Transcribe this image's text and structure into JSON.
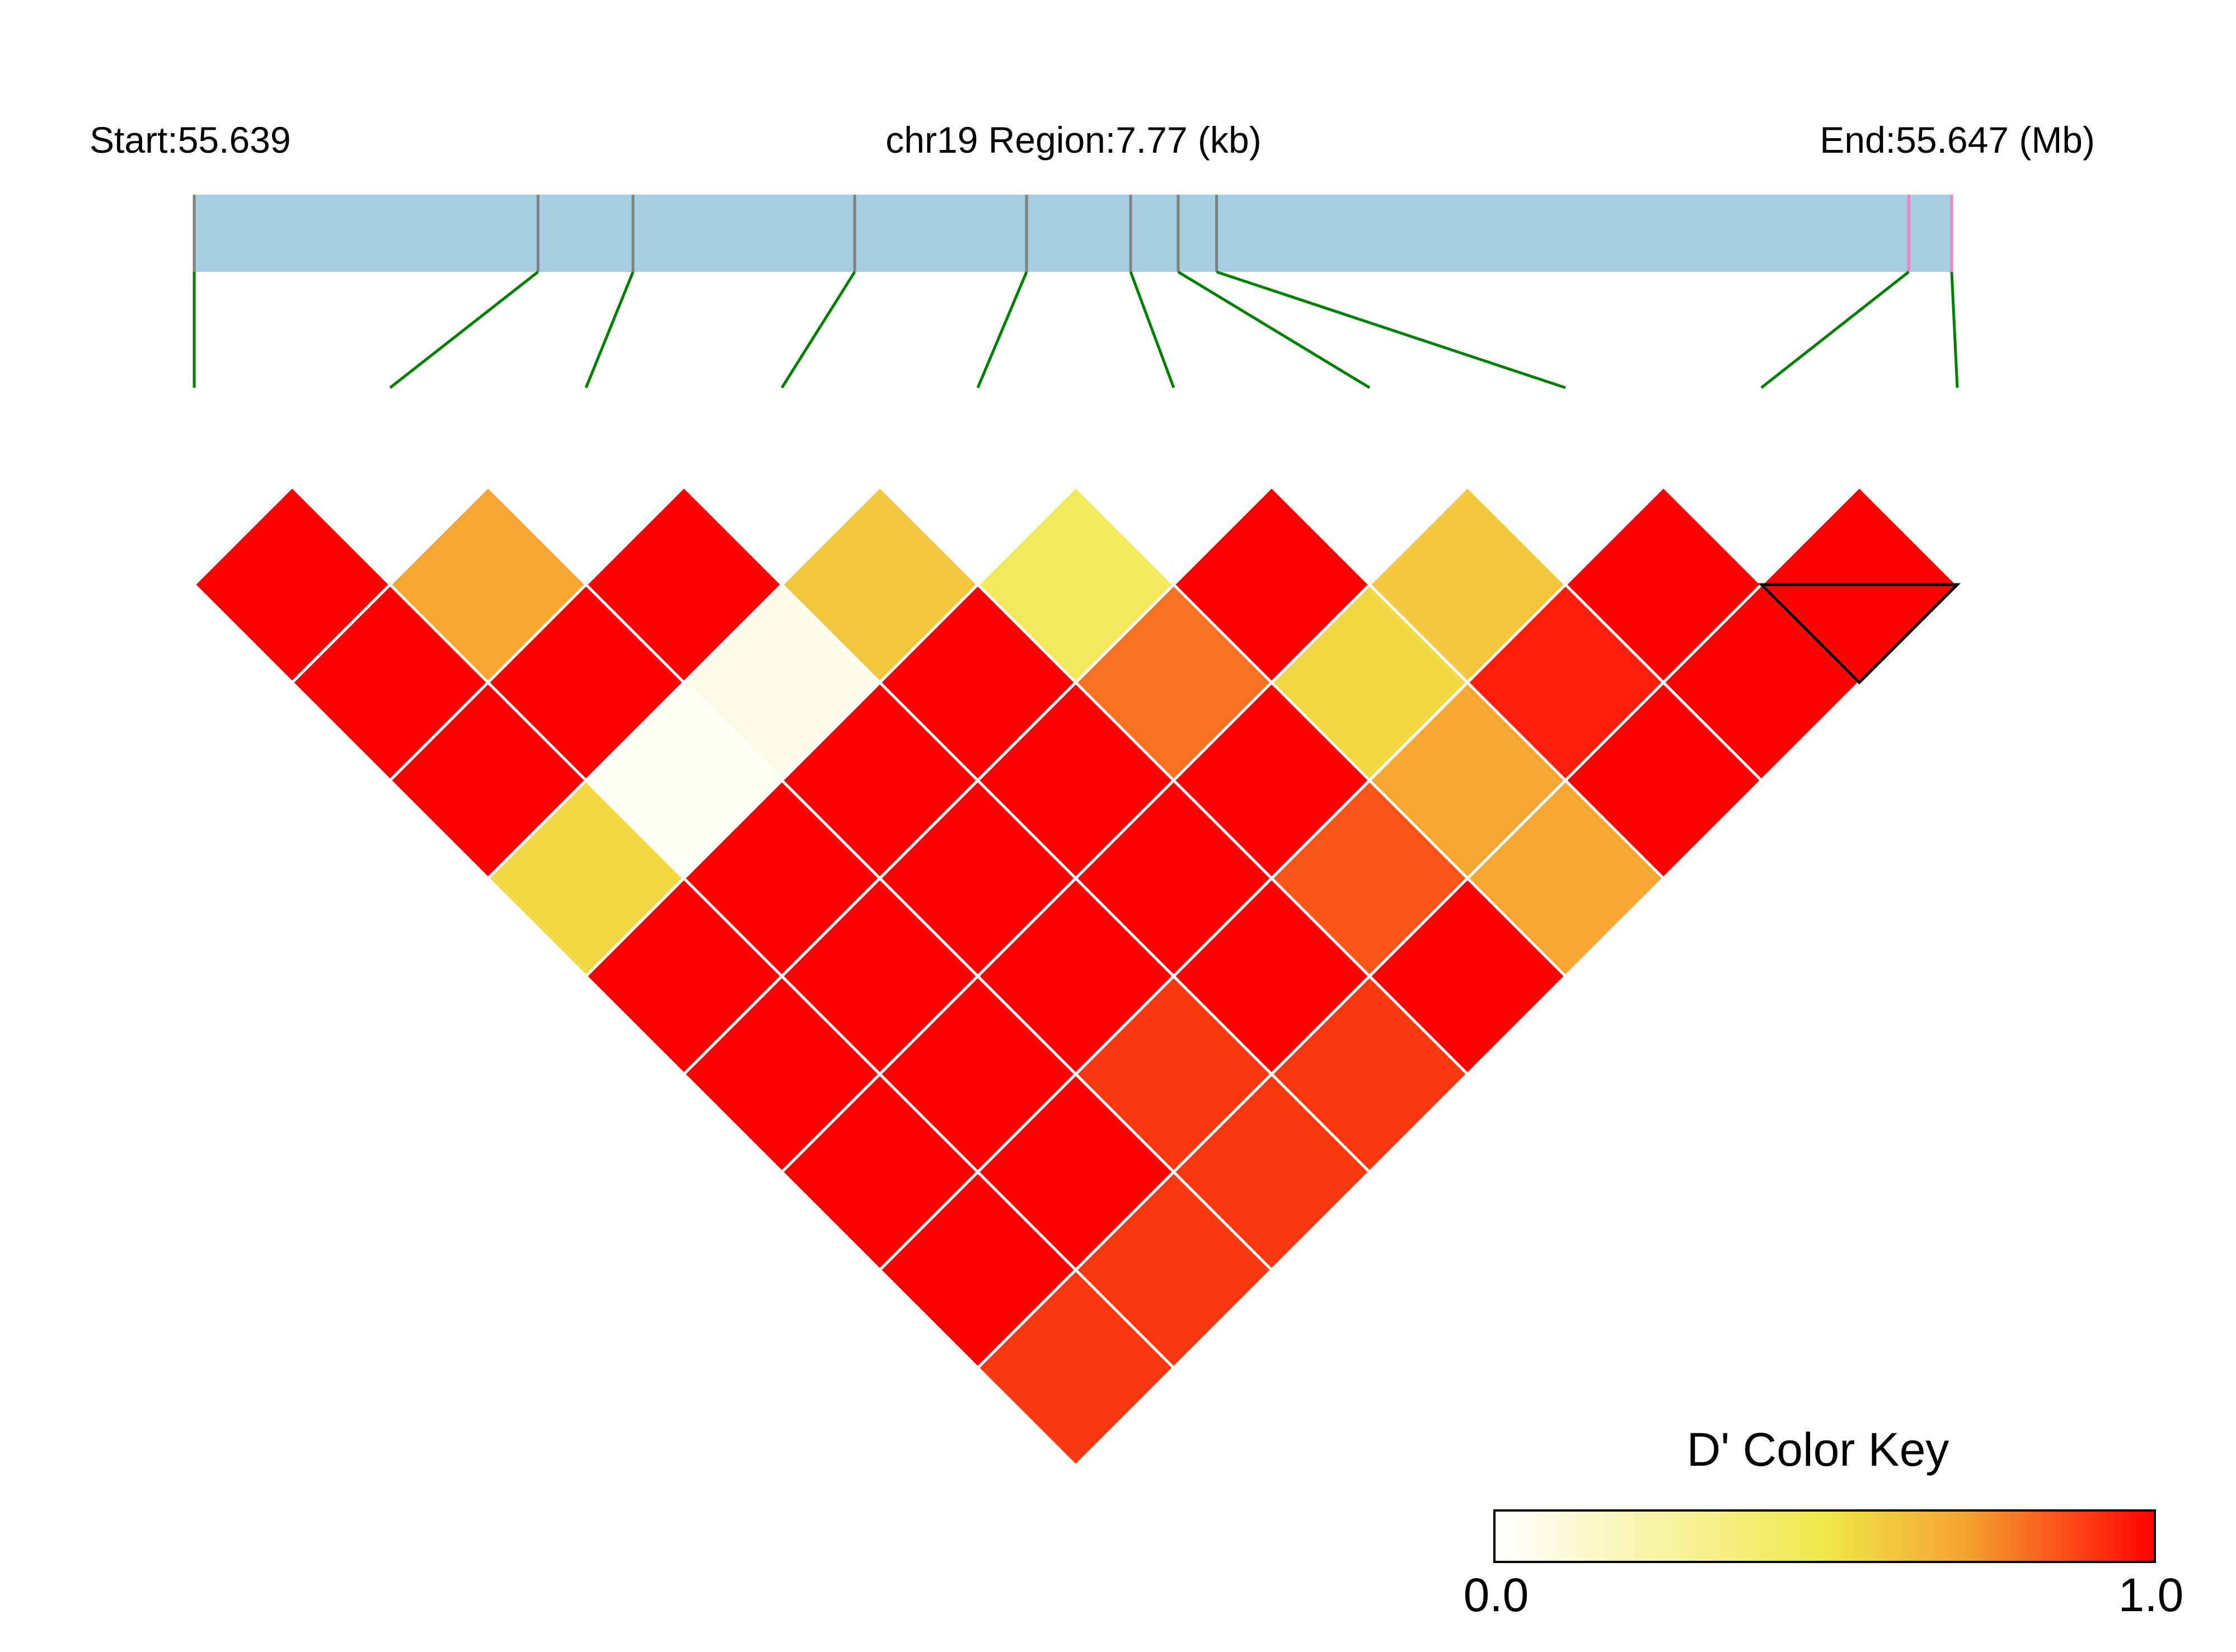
{
  "header": {
    "start_label": "Start:55.639",
    "region_label": "chr19 Region:7.77 (kb)",
    "end_label": "End:55.647 (Mb)"
  },
  "colors": {
    "region_bar": "#a6cee3",
    "snp_tick": "#808080",
    "highlight_tick": "#ee82c8",
    "connector": "#008000",
    "cell_border": "#ffffff",
    "highlight_outline": "#000000"
  },
  "chart_data": {
    "type": "heatmap",
    "chromosome": "chr19",
    "start_mb": 55.639,
    "end_mb": 55.647,
    "region_kb": 7.77,
    "snp_count": 10,
    "snp_positions_kb": [
      0.0,
      1.52,
      1.94,
      2.92,
      3.68,
      4.14,
      4.35,
      4.52,
      7.58,
      7.77
    ],
    "highlighted_snps": [
      8,
      9
    ],
    "matrix_layout": "rows[i][j] is the D' value for SNP pair (i, j+i+1)",
    "dprime_rows": [
      [
        1.0,
        1.0,
        1.0,
        0.55,
        1.0,
        1.0,
        1.0,
        1.0,
        0.9
      ],
      [
        0.7,
        1.0,
        0.03,
        1.0,
        1.0,
        1.0,
        1.0,
        0.9
      ],
      [
        1.0,
        0.06,
        1.0,
        1.0,
        1.0,
        0.9,
        0.9
      ],
      [
        0.6,
        1.0,
        1.0,
        1.0,
        1.0,
        0.9
      ],
      [
        0.45,
        0.8,
        1.0,
        0.85,
        1.0
      ],
      [
        1.0,
        0.55,
        0.7,
        0.7
      ],
      [
        0.6,
        0.95,
        1.0
      ],
      [
        1.0,
        1.0
      ],
      [
        1.0
      ]
    ],
    "highlighted_pair": [
      8,
      9
    ],
    "color_key": {
      "title": "D' Color Key",
      "min_label": "0.0",
      "max_label": "1.0",
      "range": [
        0,
        1
      ],
      "stops": [
        "#ffffff",
        "#f0e84a",
        "#f5a030",
        "#ff0000"
      ]
    }
  }
}
